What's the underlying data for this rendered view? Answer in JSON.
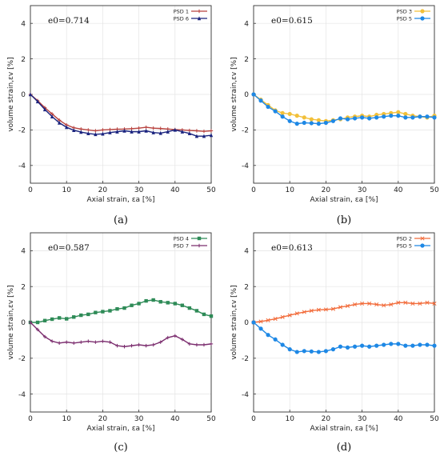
{
  "chart_data": [
    {
      "type": "line",
      "panel_label": "(a)",
      "annotation": "e0=0.714",
      "xlabel": "Axial strain,  εa [%]",
      "ylabel": "volume strain,εv [%]",
      "xlim": [
        0,
        50
      ],
      "ylim": [
        -5,
        5
      ],
      "xticks": [
        0,
        10,
        20,
        30,
        40,
        50
      ],
      "yticks": [
        -4,
        -2,
        0,
        2,
        4
      ],
      "grid": true,
      "legend_position": "top-right",
      "series": [
        {
          "name": "PSD 1",
          "color": "#b8423e",
          "marker": "plus",
          "x": [
            0,
            2,
            4,
            6,
            8,
            10,
            12,
            14,
            16,
            18,
            20,
            22,
            24,
            26,
            28,
            30,
            32,
            34,
            36,
            38,
            40,
            42,
            44,
            46,
            48,
            50
          ],
          "y": [
            0,
            -0.35,
            -0.75,
            -1.1,
            -1.45,
            -1.72,
            -1.88,
            -1.95,
            -2.0,
            -2.05,
            -2.0,
            -1.98,
            -1.96,
            -1.95,
            -1.93,
            -1.9,
            -1.85,
            -1.9,
            -1.92,
            -1.95,
            -1.98,
            -2.0,
            -2.03,
            -2.05,
            -2.08,
            -2.05
          ]
        },
        {
          "name": "PSD 6",
          "color": "#1a237e",
          "marker": "triangle",
          "x": [
            0,
            2,
            4,
            6,
            8,
            10,
            12,
            14,
            16,
            18,
            20,
            22,
            24,
            26,
            28,
            30,
            32,
            34,
            36,
            38,
            40,
            42,
            44,
            46,
            48,
            50
          ],
          "y": [
            0,
            -0.4,
            -0.85,
            -1.25,
            -1.6,
            -1.85,
            -2.02,
            -2.12,
            -2.2,
            -2.25,
            -2.22,
            -2.15,
            -2.1,
            -2.05,
            -2.1,
            -2.1,
            -2.05,
            -2.15,
            -2.18,
            -2.1,
            -2.0,
            -2.1,
            -2.2,
            -2.35,
            -2.35,
            -2.3
          ]
        }
      ]
    },
    {
      "type": "line",
      "panel_label": "(b)",
      "annotation": "e0=0.615",
      "xlabel": "Axial strain,  εa [%]",
      "ylabel": "volume strain,εv [%]",
      "xlim": [
        0,
        50
      ],
      "ylim": [
        -5,
        5
      ],
      "xticks": [
        0,
        10,
        20,
        30,
        40,
        50
      ],
      "yticks": [
        -4,
        -2,
        0,
        2,
        4
      ],
      "grid": true,
      "legend_position": "top-right",
      "series": [
        {
          "name": "PSD 3",
          "color": "#f2c03a",
          "marker": "circle",
          "x": [
            0,
            2,
            4,
            6,
            8,
            10,
            12,
            14,
            16,
            18,
            20,
            22,
            24,
            26,
            28,
            30,
            32,
            34,
            36,
            38,
            40,
            42,
            44,
            46,
            48,
            50
          ],
          "y": [
            0,
            -0.3,
            -0.6,
            -0.9,
            -1.05,
            -1.1,
            -1.2,
            -1.3,
            -1.4,
            -1.45,
            -1.5,
            -1.45,
            -1.4,
            -1.3,
            -1.25,
            -1.2,
            -1.25,
            -1.15,
            -1.1,
            -1.05,
            -1.0,
            -1.1,
            -1.2,
            -1.25,
            -1.3,
            -1.2
          ]
        },
        {
          "name": "PSD 5",
          "color": "#1e88e5",
          "marker": "circle",
          "x": [
            0,
            2,
            4,
            6,
            8,
            10,
            12,
            14,
            16,
            18,
            20,
            22,
            24,
            26,
            28,
            30,
            32,
            34,
            36,
            38,
            40,
            42,
            44,
            46,
            48,
            50
          ],
          "y": [
            0,
            -0.35,
            -0.7,
            -0.95,
            -1.25,
            -1.5,
            -1.65,
            -1.6,
            -1.62,
            -1.65,
            -1.6,
            -1.5,
            -1.35,
            -1.4,
            -1.35,
            -1.3,
            -1.35,
            -1.3,
            -1.25,
            -1.2,
            -1.2,
            -1.3,
            -1.3,
            -1.25,
            -1.25,
            -1.3
          ]
        }
      ]
    },
    {
      "type": "line",
      "panel_label": "(c)",
      "annotation": "e0=0.587",
      "xlabel": "Axial strain,  εa [%]",
      "ylabel": "volume strain,εv [%]",
      "xlim": [
        0,
        50
      ],
      "ylim": [
        -5,
        5
      ],
      "xticks": [
        0,
        10,
        20,
        30,
        40,
        50
      ],
      "yticks": [
        -4,
        -2,
        0,
        2,
        4
      ],
      "grid": true,
      "legend_position": "top-right",
      "series": [
        {
          "name": "PSD 4",
          "color": "#2e8b57",
          "marker": "square",
          "x": [
            0,
            2,
            4,
            6,
            8,
            10,
            12,
            14,
            16,
            18,
            20,
            22,
            24,
            26,
            28,
            30,
            32,
            34,
            36,
            38,
            40,
            42,
            44,
            46,
            48,
            50
          ],
          "y": [
            0,
            0.0,
            0.1,
            0.18,
            0.25,
            0.2,
            0.3,
            0.4,
            0.45,
            0.55,
            0.6,
            0.65,
            0.75,
            0.8,
            0.95,
            1.05,
            1.2,
            1.25,
            1.15,
            1.1,
            1.05,
            0.95,
            0.8,
            0.65,
            0.45,
            0.35
          ]
        },
        {
          "name": "PSD 7",
          "color": "#7b2d6e",
          "marker": "plus",
          "x": [
            0,
            2,
            4,
            6,
            8,
            10,
            12,
            14,
            16,
            18,
            20,
            22,
            24,
            26,
            28,
            30,
            32,
            34,
            36,
            38,
            40,
            42,
            44,
            46,
            48,
            50
          ],
          "y": [
            0,
            -0.4,
            -0.8,
            -1.05,
            -1.15,
            -1.1,
            -1.15,
            -1.1,
            -1.05,
            -1.1,
            -1.05,
            -1.1,
            -1.3,
            -1.35,
            -1.3,
            -1.25,
            -1.3,
            -1.25,
            -1.1,
            -0.85,
            -0.75,
            -0.95,
            -1.2,
            -1.25,
            -1.25,
            -1.2
          ]
        }
      ]
    },
    {
      "type": "line",
      "panel_label": "(d)",
      "annotation": "e0=0.613",
      "xlabel": "Axial strain,  εa [%]",
      "ylabel": "volume strain,εv [%]",
      "xlim": [
        0,
        50
      ],
      "ylim": [
        -5,
        5
      ],
      "xticks": [
        0,
        10,
        20,
        30,
        40,
        50
      ],
      "yticks": [
        -4,
        -2,
        0,
        2,
        4
      ],
      "grid": true,
      "legend_position": "top-right",
      "series": [
        {
          "name": "PSD 2",
          "color": "#f26b3a",
          "marker": "cross",
          "x": [
            0,
            2,
            4,
            6,
            8,
            10,
            12,
            14,
            16,
            18,
            20,
            22,
            24,
            26,
            28,
            30,
            32,
            34,
            36,
            38,
            40,
            42,
            44,
            46,
            48,
            50
          ],
          "y": [
            0,
            0.05,
            0.12,
            0.2,
            0.3,
            0.4,
            0.5,
            0.58,
            0.65,
            0.7,
            0.72,
            0.75,
            0.85,
            0.92,
            1.0,
            1.05,
            1.05,
            1.0,
            0.95,
            1.0,
            1.1,
            1.1,
            1.05,
            1.05,
            1.1,
            1.05
          ]
        },
        {
          "name": "PSD 5",
          "color": "#1e88e5",
          "marker": "circle",
          "x": [
            0,
            2,
            4,
            6,
            8,
            10,
            12,
            14,
            16,
            18,
            20,
            22,
            24,
            26,
            28,
            30,
            32,
            34,
            36,
            38,
            40,
            42,
            44,
            46,
            48,
            50
          ],
          "y": [
            0,
            -0.35,
            -0.7,
            -0.95,
            -1.25,
            -1.5,
            -1.65,
            -1.6,
            -1.62,
            -1.65,
            -1.6,
            -1.5,
            -1.35,
            -1.4,
            -1.35,
            -1.3,
            -1.35,
            -1.3,
            -1.25,
            -1.2,
            -1.2,
            -1.3,
            -1.3,
            -1.25,
            -1.25,
            -1.3
          ]
        }
      ]
    }
  ]
}
